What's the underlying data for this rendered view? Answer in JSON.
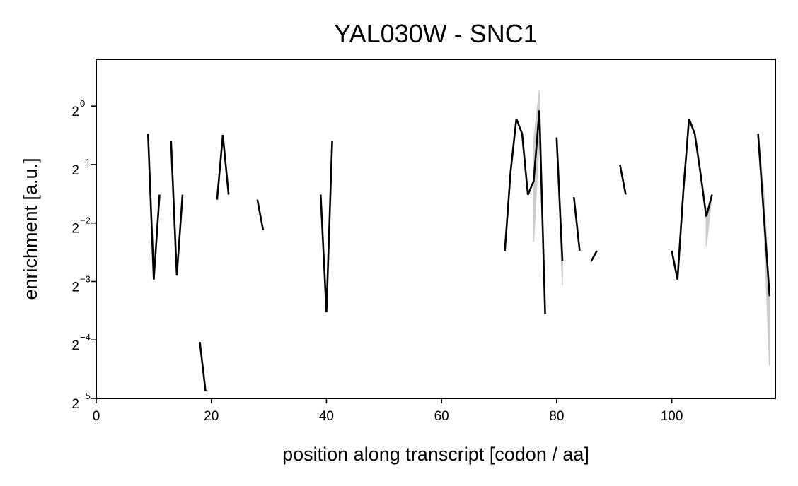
{
  "chart_data": {
    "type": "line",
    "title": "YAL030W - SNC1",
    "xlabel": "position along transcript [codon / aa]",
    "ylabel": "enrichment [a.u.]",
    "x_scale": "linear",
    "y_scale": "log2",
    "xlim": [
      0,
      118
    ],
    "ylim_log2": [
      -5,
      0.8
    ],
    "x_ticks": [
      0,
      20,
      40,
      60,
      80,
      100
    ],
    "x_tick_labels": [
      "0",
      "20",
      "40",
      "60",
      "80",
      "100"
    ],
    "y_ticks_log2": [
      -5,
      -4,
      -3,
      -2,
      -1,
      0
    ],
    "y_tick_labels": [
      {
        "base": "2",
        "exp": "−5"
      },
      {
        "base": "2",
        "exp": "−4"
      },
      {
        "base": "2",
        "exp": "−3"
      },
      {
        "base": "2",
        "exp": "−2"
      },
      {
        "base": "2",
        "exp": "−1"
      },
      {
        "base": "2",
        "exp": "0"
      }
    ],
    "grid": false,
    "legend": "none",
    "line_color": "#000000",
    "band_color": "#cccccc",
    "series": [
      {
        "values": [
          [
            9,
            0.72
          ],
          [
            10,
            0.128
          ],
          [
            11,
            0.35
          ]
        ]
      },
      {
        "values": [
          [
            13,
            0.66
          ],
          [
            14,
            0.134
          ],
          [
            15,
            0.35
          ]
        ]
      },
      {
        "values": [
          [
            18,
            0.061
          ],
          [
            19,
            0.034
          ]
        ]
      },
      {
        "values": [
          [
            21,
            0.33
          ],
          [
            22,
            0.71
          ],
          [
            23,
            0.35
          ]
        ]
      },
      {
        "values": [
          [
            28,
            0.33
          ],
          [
            29,
            0.23
          ]
        ]
      },
      {
        "values": [
          [
            39,
            0.35
          ],
          [
            40,
            0.087
          ],
          [
            41,
            0.66
          ]
        ]
      },
      {
        "values": [
          [
            71,
            0.18
          ],
          [
            72,
            0.46
          ],
          [
            73,
            0.86
          ],
          [
            74,
            0.72
          ],
          [
            75,
            0.35
          ],
          [
            76,
            0.41
          ],
          [
            77,
            0.95
          ],
          [
            78,
            0.085
          ]
        ]
      },
      {
        "values": [
          [
            80,
            0.69
          ],
          [
            81,
            0.16
          ]
        ]
      },
      {
        "values": [
          [
            83,
            0.34
          ],
          [
            84,
            0.18
          ]
        ]
      },
      {
        "values": [
          [
            86,
            0.159
          ],
          [
            87,
            0.18
          ]
        ]
      },
      {
        "values": [
          [
            91,
            0.5
          ],
          [
            92,
            0.35
          ]
        ]
      },
      {
        "values": [
          [
            100,
            0.18
          ],
          [
            101,
            0.128
          ],
          [
            102,
            0.36
          ],
          [
            103,
            0.86
          ],
          [
            104,
            0.72
          ],
          [
            105,
            0.45
          ],
          [
            106,
            0.27
          ],
          [
            107,
            0.35
          ]
        ]
      },
      {
        "values": [
          [
            115,
            0.72
          ],
          [
            117,
            0.105
          ]
        ]
      }
    ],
    "bands": [
      {
        "x": [
          76,
          77,
          78
        ],
        "low": [
          0.2,
          0.7,
          0.085
        ],
        "high": [
          0.66,
          1.2,
          0.085
        ]
      },
      {
        "x": [
          80,
          81
        ],
        "low": [
          0.69,
          0.12
        ],
        "high": [
          0.69,
          0.16
        ]
      },
      {
        "x": [
          106,
          107
        ],
        "low": [
          0.19,
          0.35
        ],
        "high": [
          0.27,
          0.35
        ]
      },
      {
        "x": [
          115,
          116,
          117
        ],
        "low": [
          0.72,
          0.25,
          0.046
        ],
        "high": [
          0.72,
          0.36,
          0.105
        ]
      }
    ]
  }
}
